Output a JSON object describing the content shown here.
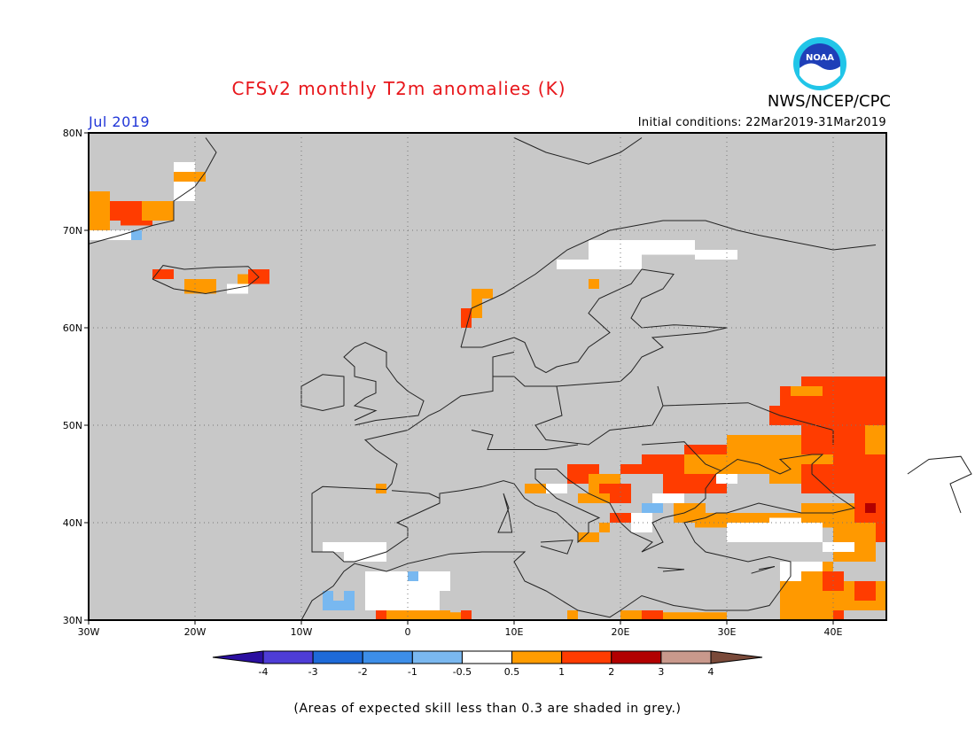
{
  "header": {
    "title": "CFSv2 monthly T2m anomalies (K)",
    "month": "Jul 2019",
    "initial_conditions": "Initial conditions: 22Mar2019-31Mar2019",
    "agency": "NWS/NCEP/CPC",
    "logo_text": "NOAA"
  },
  "colors": {
    "title": "#e8161b",
    "month": "#2136d8",
    "grey": "#c8c8c8",
    "white": "#ffffff",
    "pos_05_1": "#ff9900",
    "pos_1_2": "#ff3c00",
    "pos_2_3": "#b20000",
    "neg_05_1": "#78b8f0",
    "neg_1_2": "#4898e8"
  },
  "map": {
    "lat_labels": [
      "80N",
      "70N",
      "60N",
      "50N",
      "40N",
      "30N"
    ],
    "lon_labels": [
      "30W",
      "20W",
      "10W",
      "0",
      "10E",
      "20E",
      "30E",
      "40E"
    ]
  },
  "legend": {
    "colors": [
      "#2b0fa0",
      "#4e3dd6",
      "#1e6ad8",
      "#3d8ee8",
      "#7ab8f0",
      "#ffffff",
      "#ff9c00",
      "#ff3c00",
      "#b20000",
      "#c9998c",
      "#7a4a3a"
    ],
    "labels": [
      "-4",
      "-3",
      "-2",
      "-1",
      "-0.5",
      "0.5",
      "1",
      "2",
      "3",
      "4"
    ]
  },
  "note": "(Areas of expected skill less than 0.3 are shaded in grey.)"
}
